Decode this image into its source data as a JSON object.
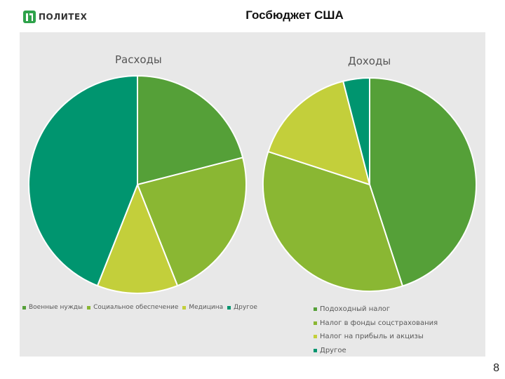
{
  "header": {
    "logo_text": "ПОЛИТЕХ",
    "title": "Госбюджет США",
    "logo_color": "#2ea24a"
  },
  "page_number": "8",
  "chart_data": [
    {
      "type": "pie",
      "title": "Расходы",
      "categories": [
        "Военные нужды",
        "Социальное обеспечение",
        "Медицина",
        "Другое"
      ],
      "values": [
        21,
        23,
        12,
        44
      ],
      "colors": [
        "#55a038",
        "#8ab733",
        "#c3cf3b",
        "#00956f"
      ]
    },
    {
      "type": "pie",
      "title": "Доходы",
      "categories": [
        "Подоходный налог",
        "Налог в фонды соцстрахования",
        "Налог на прибыль и акцизы",
        "Другое"
      ],
      "values": [
        45,
        35,
        16,
        4
      ],
      "colors": [
        "#55a038",
        "#8ab733",
        "#c3cf3b",
        "#00956f"
      ]
    }
  ]
}
